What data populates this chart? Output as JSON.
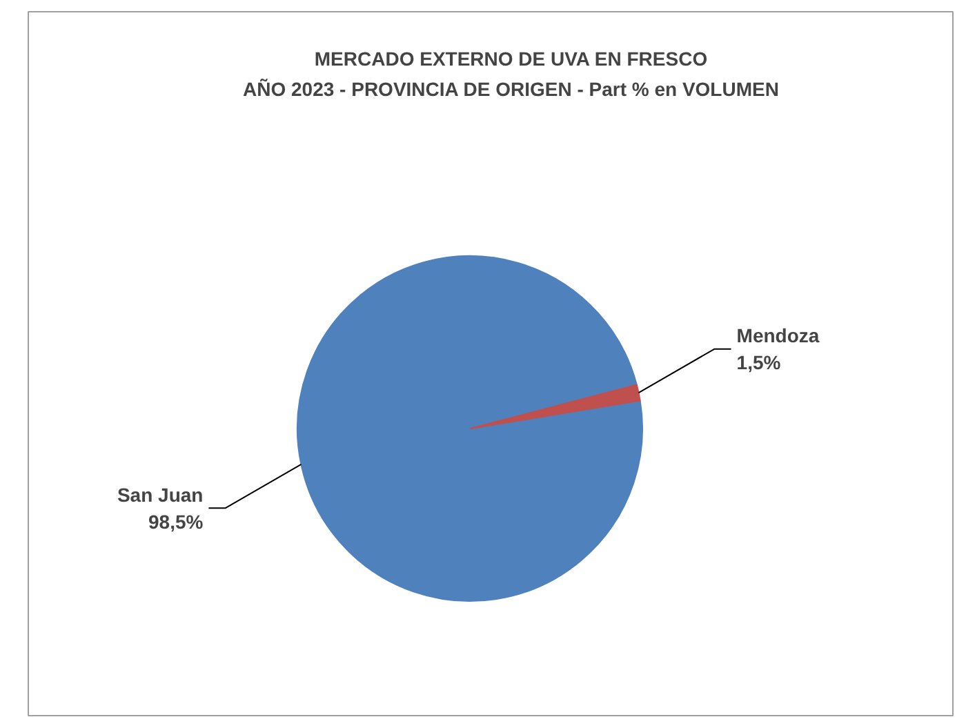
{
  "chart_data": {
    "type": "pie",
    "title": "MERCADO EXTERNO DE UVA EN FRESCO\nAÑO 2023 - PROVINCIA DE ORIGEN - Part % en VOLUMEN",
    "categories": [
      "San Juan",
      "Mendoza"
    ],
    "values": [
      98.5,
      1.5
    ],
    "colors": [
      "#4f81bd",
      "#c0504d"
    ],
    "value_labels": [
      "98,5%",
      "1,5%"
    ]
  }
}
